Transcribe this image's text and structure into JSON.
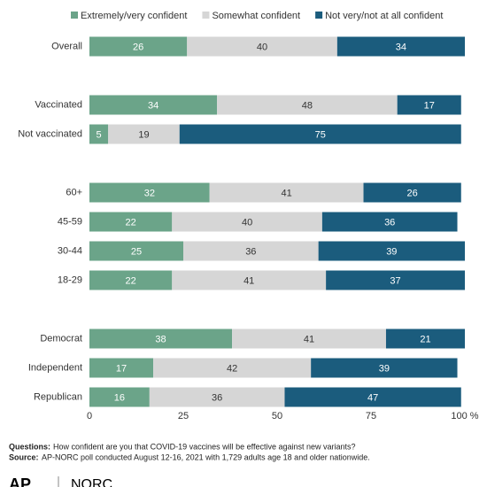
{
  "chart_data": {
    "type": "stacked-bar",
    "orientation": "horizontal",
    "categories": [
      "Overall",
      null,
      "Vaccinated",
      "Not vaccinated",
      null,
      "60+",
      "45-59",
      "30-44",
      "18-29",
      null,
      "Democrat",
      "Independent",
      "Republican"
    ],
    "series": [
      {
        "name": "Extremely/very confident",
        "color": "#6ba489",
        "values": [
          26,
          null,
          34,
          5,
          null,
          32,
          22,
          25,
          22,
          null,
          38,
          17,
          16
        ]
      },
      {
        "name": "Somewhat confident",
        "color": "#d6d6d6",
        "values": [
          40,
          null,
          48,
          19,
          null,
          41,
          40,
          36,
          41,
          null,
          41,
          42,
          36
        ]
      },
      {
        "name": "Not very/not at all confident",
        "color": "#1b5c7d",
        "values": [
          34,
          null,
          17,
          75,
          null,
          26,
          36,
          39,
          37,
          null,
          21,
          39,
          47
        ]
      }
    ],
    "xlim": [
      0,
      100
    ],
    "xticks": [
      0,
      25,
      50,
      75,
      {
        "value": 100,
        "label": "100 %"
      }
    ],
    "grid": false,
    "legend": "top"
  },
  "footer": {
    "questions_label": "Questions:",
    "questions": "How confident are you that COVID-19 vaccines will be effective against new variants?",
    "source_label": "Source:",
    "source": "AP-NORC poll conducted August 12-16, 2021 with 1,729 adults age 18 and older nationwide.",
    "logos": [
      "AP",
      "NORC"
    ]
  }
}
